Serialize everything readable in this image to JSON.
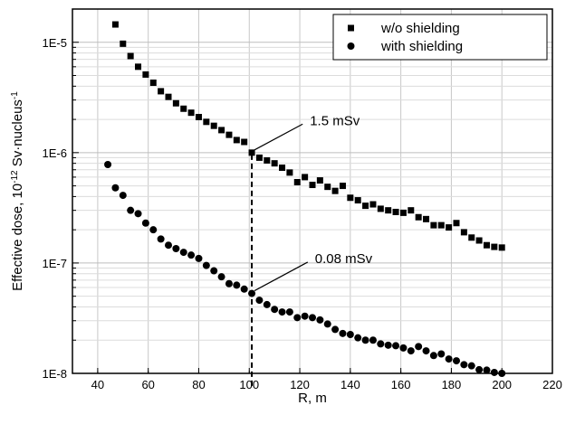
{
  "chart_data": {
    "type": "scatter",
    "xlabel": "R, m",
    "ylabel_main": "Effective dose, 10",
    "ylabel_sup": "-12",
    "ylabel_tail": " Sv·nucleus",
    "ylabel_sup2": "-1",
    "xlim": [
      30,
      220
    ],
    "ylim": [
      1e-08,
      2e-05
    ],
    "yscale": "log",
    "grid": true,
    "legend_position": "top-right",
    "x_ticks": [
      40,
      60,
      80,
      100,
      120,
      140,
      160,
      180,
      200,
      220
    ],
    "x_tick_labels": [
      "40",
      "60",
      "80",
      "100",
      "120",
      "140",
      "160",
      "180",
      "200",
      "220"
    ],
    "y_ticks": [
      1e-08,
      1e-07,
      1e-06,
      1e-05
    ],
    "y_tick_labels": [
      "1E-8",
      "1E-7",
      "1E-6",
      "1E-5"
    ],
    "series": [
      {
        "name": "w/o shielding",
        "marker": "square",
        "x": [
          47,
          50,
          53,
          56,
          59,
          62,
          65,
          68,
          71,
          74,
          77,
          80,
          83,
          86,
          89,
          92,
          95,
          98,
          101,
          104,
          107,
          110,
          113,
          116,
          119,
          122,
          125,
          128,
          131,
          134,
          137,
          140,
          143,
          146,
          149,
          152,
          155,
          158,
          161,
          164,
          167,
          170,
          173,
          176,
          179,
          182,
          185,
          188,
          191,
          194,
          197,
          200
        ],
        "y": [
          1.45e-05,
          9.7e-06,
          7.5e-06,
          6e-06,
          5.1e-06,
          4.3e-06,
          3.6e-06,
          3.2e-06,
          2.8e-06,
          2.5e-06,
          2.3e-06,
          2.1e-06,
          1.9e-06,
          1.75e-06,
          1.6e-06,
          1.45e-06,
          1.3e-06,
          1.25e-06,
          1e-06,
          9e-07,
          8.5e-07,
          8e-07,
          7.3e-07,
          6.6e-07,
          5.4e-07,
          6e-07,
          5.1e-07,
          5.6e-07,
          4.9e-07,
          4.5e-07,
          5e-07,
          3.9e-07,
          3.7e-07,
          3.3e-07,
          3.4e-07,
          3.1e-07,
          3e-07,
          2.9e-07,
          2.85e-07,
          3e-07,
          2.6e-07,
          2.5e-07,
          2.2e-07,
          2.2e-07,
          2.1e-07,
          2.3e-07,
          1.9e-07,
          1.7e-07,
          1.6e-07,
          1.45e-07,
          1.4e-07,
          1.38e-07
        ]
      },
      {
        "name": "with shielding",
        "marker": "circle",
        "x": [
          44,
          47,
          50,
          53,
          56,
          59,
          62,
          65,
          68,
          71,
          74,
          77,
          80,
          83,
          86,
          89,
          92,
          95,
          98,
          101,
          104,
          107,
          110,
          113,
          116,
          119,
          122,
          125,
          128,
          131,
          134,
          137,
          140,
          143,
          146,
          149,
          152,
          155,
          158,
          161,
          164,
          167,
          170,
          173,
          176,
          179,
          182,
          185,
          188,
          191,
          194,
          197,
          200
        ],
        "y": [
          7.8e-07,
          4.8e-07,
          4.1e-07,
          3e-07,
          2.8e-07,
          2.3e-07,
          2e-07,
          1.65e-07,
          1.45e-07,
          1.35e-07,
          1.25e-07,
          1.18e-07,
          1.1e-07,
          9.5e-08,
          8.5e-08,
          7.5e-08,
          6.5e-08,
          6.3e-08,
          5.8e-08,
          5.3e-08,
          4.6e-08,
          4.2e-08,
          3.8e-08,
          3.6e-08,
          3.6e-08,
          3.2e-08,
          3.3e-08,
          3.2e-08,
          3.05e-08,
          2.8e-08,
          2.5e-08,
          2.3e-08,
          2.25e-08,
          2.1e-08,
          2e-08,
          2e-08,
          1.85e-08,
          1.8e-08,
          1.78e-08,
          1.7e-08,
          1.6e-08,
          1.75e-08,
          1.6e-08,
          1.45e-08,
          1.5e-08,
          1.35e-08,
          1.3e-08,
          1.2e-08,
          1.17e-08,
          1.08e-08,
          1.07e-08,
          1.02e-08,
          1e-08
        ]
      }
    ],
    "reference_line": {
      "x": 101,
      "style": "dashed"
    },
    "annotations": [
      {
        "text": "1.5 mSv",
        "target": [
          101,
          1e-06
        ],
        "label_at": [
          124,
          1.78e-06
        ]
      },
      {
        "text": "0.08 mSv",
        "target": [
          101,
          5.3e-08
        ],
        "label_at": [
          126,
          1e-07
        ]
      }
    ]
  }
}
